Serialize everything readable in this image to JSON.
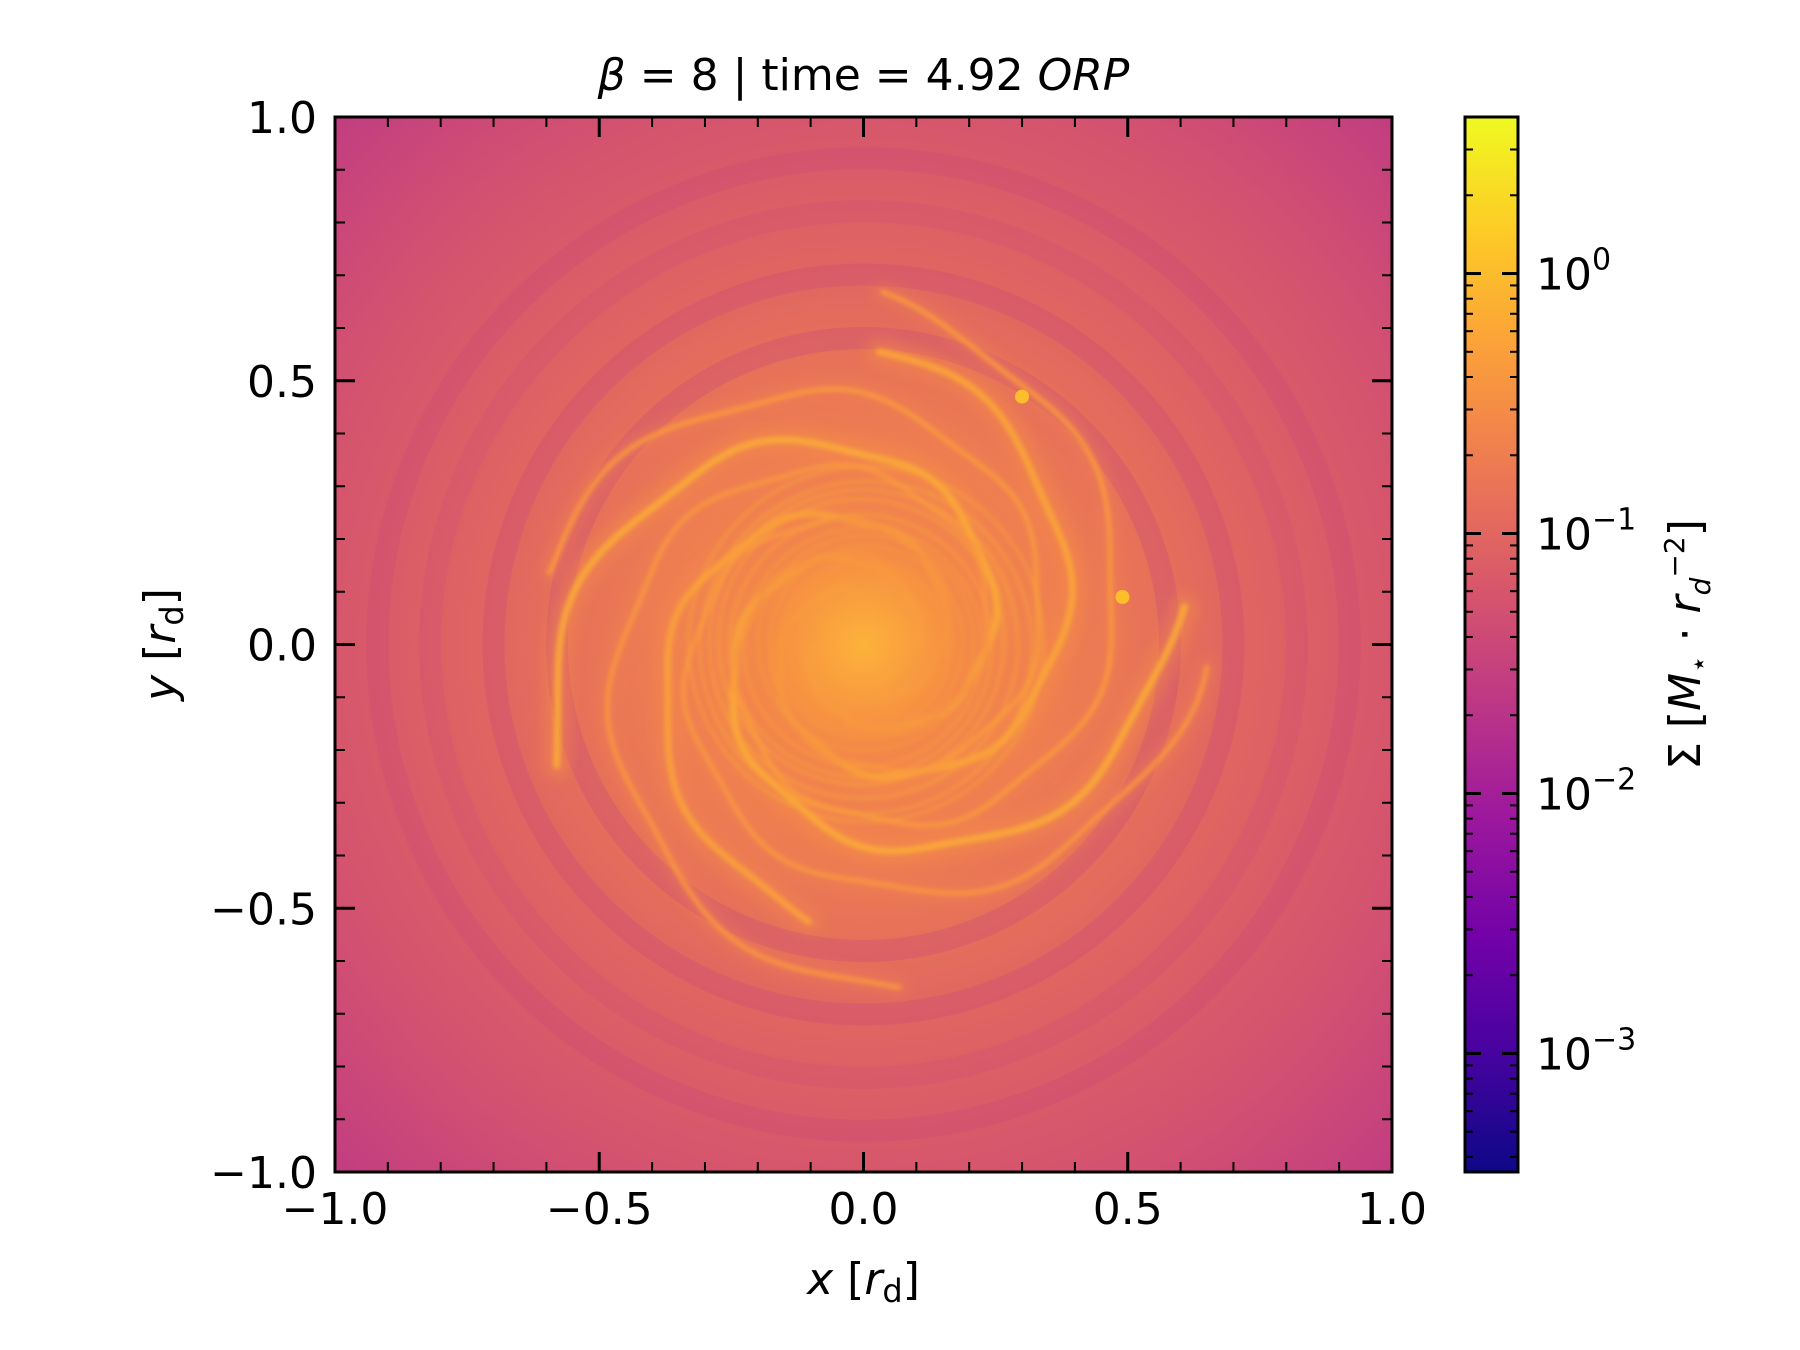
{
  "chart_data": {
    "type": "heatmap",
    "title_parts": {
      "beta_symbol": "β",
      "beta_value": " = 8 | time = 4.92 ",
      "time_unit": "ORP"
    },
    "xlabel": {
      "var": "x",
      "open": " [",
      "unit": "r",
      "unit_sub": "d",
      "close": "]"
    },
    "ylabel": {
      "var": "y",
      "open": " [",
      "unit": "r",
      "unit_sub": "d",
      "close": "]"
    },
    "xlim": [
      -1.0,
      1.0
    ],
    "ylim": [
      -1.0,
      1.0
    ],
    "xticks": [
      -1.0,
      -0.5,
      0.0,
      0.5,
      1.0
    ],
    "yticks": [
      -1.0,
      -0.5,
      0.0,
      0.5,
      1.0
    ],
    "xtick_labels": [
      "−1.0",
      "−0.5",
      "0.0",
      "0.5",
      "1.0"
    ],
    "ytick_labels": [
      "−1.0",
      "−0.5",
      "0.0",
      "0.5",
      "1.0"
    ],
    "minor_tick_step": 0.1,
    "colorbar": {
      "scale": "log",
      "colormap": "plasma",
      "vmin": 0.00035,
      "vmax": 4.0,
      "major_ticks": [
        0.001,
        0.01,
        0.1,
        1
      ],
      "major_tick_bases": [
        "10",
        "10",
        "10",
        "10"
      ],
      "major_tick_exponents": [
        "−3",
        "−2",
        "−1",
        "0"
      ],
      "label": {
        "prefix": "Σ [",
        "mass": "M",
        "mass_sub": "⋆",
        "dot": " · ",
        "unit": "r",
        "unit_sub": "d",
        "unit_sup": "−2",
        "close": "]"
      }
    },
    "field_description": "surface density of a self-gravitating disc with spiral arms; peak at center",
    "features": {
      "center": [
        0.0,
        0.0
      ],
      "clumps": [
        [
          0.3,
          0.47
        ],
        [
          0.49,
          0.09
        ]
      ],
      "spiral_arms": 4
    }
  },
  "colors": {
    "cmap_stops": [
      "#0d0887",
      "#46039f",
      "#7201a8",
      "#9c179e",
      "#bd3786",
      "#d8576b",
      "#ed7953",
      "#fb9f3a",
      "#fdca26",
      "#f0f921"
    ]
  }
}
